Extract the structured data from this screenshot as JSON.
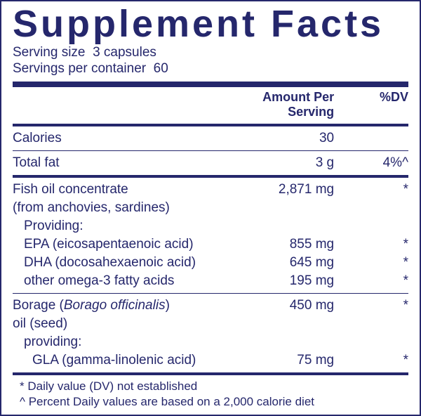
{
  "colors": {
    "ink": "#25276c",
    "bg": "#ffffff"
  },
  "title": "Supplement Facts",
  "serving_size_label": "Serving size",
  "serving_size_value": "3 capsules",
  "servings_per_container_label": "Servings per container",
  "servings_per_container_value": "60",
  "header_amount": "Amount Per Serving",
  "header_dv": "%DV",
  "rows": {
    "calories": {
      "name": "Calories",
      "amount": "30",
      "dv": ""
    },
    "total_fat": {
      "name": "Total fat",
      "amount": "3 g",
      "dv": "4%^"
    },
    "fish_oil": {
      "name": "Fish oil concentrate",
      "amount": "2,871 mg",
      "dv": "*"
    },
    "fish_oil_src": {
      "name": "(from anchovies, sardines)"
    },
    "providing": {
      "name": "Providing:"
    },
    "epa": {
      "name": "EPA (eicosapentaenoic acid)",
      "amount": "855 mg",
      "dv": "*"
    },
    "dha": {
      "name": "DHA (docosahexaenoic acid)",
      "amount": "645 mg",
      "dv": "*"
    },
    "other_o3": {
      "name": "other omega-3 fatty acids",
      "amount": "195 mg",
      "dv": "*"
    },
    "borage_l1": {
      "name_pre": "Borage (",
      "name_ital": "Borago officinalis",
      "name_post": ")",
      "amount": "450 mg",
      "dv": "*"
    },
    "borage_l2": {
      "name": "oil (seed)"
    },
    "borage_prov": {
      "name": "providing:"
    },
    "gla": {
      "name": "GLA (gamma-linolenic acid)",
      "amount": "75 mg",
      "dv": "*"
    }
  },
  "footnote1": "* Daily value (DV) not established",
  "footnote2": "^ Percent Daily values are based on a 2,000 calorie diet"
}
